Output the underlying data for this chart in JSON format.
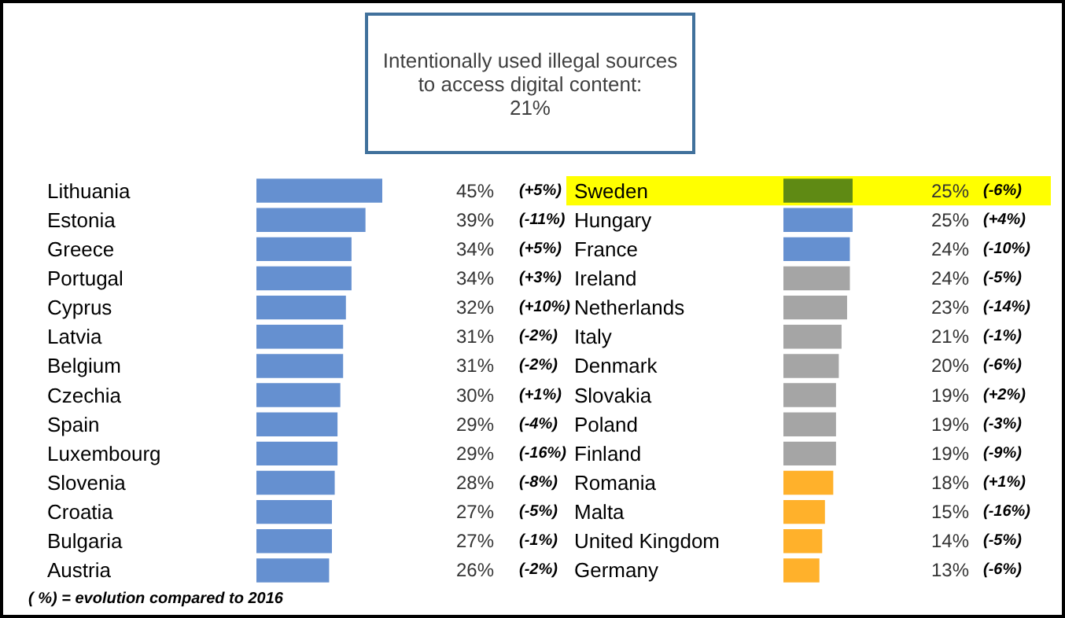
{
  "chart_data": [
    {
      "type": "bar",
      "orientation": "horizontal",
      "title": "Intentionally used illegal sources\nto access digital content:\n21%",
      "categories": [
        "Lithuania",
        "Estonia",
        "Greece",
        "Portugal",
        "Cyprus",
        "Latvia",
        "Belgium",
        "Czechia",
        "Spain",
        "Luxembourg",
        "Slovenia",
        "Croatia",
        "Bulgaria",
        "Austria"
      ],
      "values": [
        45,
        39,
        34,
        34,
        32,
        31,
        31,
        30,
        29,
        29,
        28,
        27,
        27,
        26
      ],
      "color": "#6590d0",
      "value_labels": [
        "45%",
        "39%",
        "34%",
        "34%",
        "32%",
        "31%",
        "31%",
        "30%",
        "29%",
        "29%",
        "28%",
        "27%",
        "27%",
        "26%"
      ],
      "annotations": [
        "(+5%)",
        "(-11%)",
        "(+5%)",
        "(+3%)",
        "(+10%)",
        "(-2%)",
        "(-2%)",
        "(+1%)",
        "(-4%)",
        "(-16%)",
        "(-8%)",
        "(-5%)",
        "(-1%)",
        "(-2%)",
        "( %) = evolution compared to 2016"
      ],
      "tick_labels": "y"
    },
    {
      "type": "bar",
      "orientation": "horizontal",
      "categories": [
        "Sweden",
        "Hungary",
        "France",
        "Ireland",
        "Netherlands",
        "Italy",
        "Denmark",
        "Slovakia",
        "Poland",
        "Finland",
        "Romania",
        "Malta",
        "United Kingdom",
        "Germany"
      ],
      "values": [
        25,
        25,
        24,
        24,
        23,
        21,
        20,
        19,
        19,
        19,
        18,
        15,
        14,
        13
      ],
      "colors": [
        "#5f8a14",
        "#6590d0",
        "#6590d0",
        "#a5a5a5",
        "#a5a5a5",
        "#a5a5a5",
        "#a5a5a5",
        "#a5a5a5",
        "#a5a5a5",
        "#a5a5a5",
        "#ffb12b",
        "#ffb12b",
        "#ffb12b",
        "#ffb12b"
      ],
      "value_labels": [
        "25%",
        "25%",
        "24%",
        "24%",
        "23%",
        "21%",
        "20%",
        "19%",
        "19%",
        "19%",
        "18%",
        "15%",
        "14%",
        "13%"
      ],
      "bands": [
        {
          "axis": "y",
          "from": "Sweden",
          "to": "Sweden",
          "color": "#ffff00"
        }
      ],
      "annotations": [
        "(-6%)",
        "(+4%)",
        "(-10%)",
        "(-5%)",
        "(-14%)",
        "(-1%)",
        "(-6%)",
        "(+2%)",
        "(-3%)",
        "(-9%)",
        "(+1%)",
        "(-16%)",
        "(-5%)",
        "(-6%)"
      ],
      "tick_labels": "y"
    }
  ]
}
